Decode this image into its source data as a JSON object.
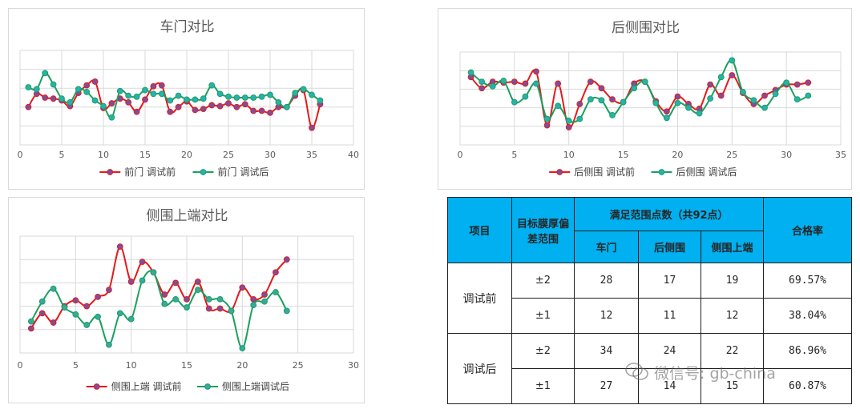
{
  "chart_data": [
    {
      "type": "line",
      "title": "车门对比",
      "xlim": [
        0,
        40
      ],
      "x_ticks": [
        0,
        5,
        10,
        15,
        20,
        25,
        30,
        35,
        40
      ],
      "ylim": [
        0,
        10
      ],
      "grid": true,
      "legend": "bottom",
      "series": [
        {
          "name": "前门 调试前",
          "color": "#e41a1c",
          "marker_color": "#7b4fa0",
          "x": [
            1,
            2,
            3,
            4,
            5,
            6,
            7,
            8,
            9,
            10,
            11,
            12,
            13,
            14,
            15,
            16,
            17,
            18,
            19,
            20,
            21,
            22,
            23,
            24,
            25,
            26,
            27,
            28,
            29,
            30,
            31,
            32,
            33,
            34,
            35,
            36
          ],
          "values": [
            4.0,
            5.4,
            5.0,
            4.9,
            4.7,
            4.1,
            5.5,
            6.3,
            6.7,
            3.9,
            4.4,
            4.9,
            4.5,
            3.5,
            4.8,
            6.2,
            6.3,
            3.5,
            4.0,
            4.6,
            3.7,
            3.8,
            4.2,
            4.1,
            4.4,
            4.0,
            4.3,
            3.6,
            3.6,
            3.4,
            4.0,
            4.0,
            5.2,
            5.8,
            1.8,
            4.3
          ]
        },
        {
          "name": "前门 调试后",
          "color": "#1aa060",
          "marker_color": "#2ab0b0",
          "x": [
            1,
            2,
            3,
            4,
            5,
            6,
            7,
            8,
            9,
            10,
            11,
            12,
            13,
            14,
            15,
            16,
            17,
            18,
            19,
            20,
            21,
            22,
            23,
            24,
            25,
            26,
            27,
            28,
            29,
            30,
            31,
            32,
            33,
            34,
            35,
            36
          ],
          "values": [
            6.1,
            5.9,
            7.6,
            6.4,
            4.9,
            4.5,
            5.9,
            5.6,
            4.7,
            4.1,
            2.9,
            5.7,
            5.2,
            5.1,
            5.8,
            5.4,
            5.4,
            4.7,
            5.2,
            4.8,
            4.8,
            4.9,
            6.3,
            5.4,
            5.1,
            5.0,
            5.0,
            5.0,
            5.1,
            5.3,
            4.5,
            4.0,
            5.5,
            5.9,
            5.3,
            4.7
          ]
        }
      ]
    },
    {
      "type": "line",
      "title": "后侧围对比",
      "xlim": [
        0,
        35
      ],
      "x_ticks": [
        0,
        5,
        10,
        15,
        20,
        25,
        30,
        35
      ],
      "ylim": [
        0,
        10
      ],
      "grid": true,
      "legend": "bottom",
      "series": [
        {
          "name": "后侧围 调试前",
          "color": "#e41a1c",
          "marker_color": "#7b4fa0",
          "x": [
            1,
            2,
            3,
            4,
            5,
            6,
            7,
            8,
            9,
            10,
            11,
            12,
            13,
            14,
            15,
            16,
            17,
            18,
            19,
            20,
            21,
            22,
            23,
            24,
            25,
            26,
            27,
            28,
            29,
            30,
            31,
            32
          ],
          "values": [
            7.3,
            6.1,
            6.8,
            6.7,
            6.8,
            6.6,
            7.9,
            2.1,
            6.6,
            1.9,
            4.4,
            6.8,
            6.1,
            4.9,
            4.6,
            6.6,
            6.8,
            4.7,
            3.6,
            5.2,
            4.4,
            3.9,
            6.5,
            5.3,
            7.5,
            5.6,
            4.4,
            5.3,
            5.9,
            6.5,
            6.5,
            6.7
          ]
        },
        {
          "name": "后侧围 调试后",
          "color": "#1aa060",
          "marker_color": "#2ab0b0",
          "x": [
            1,
            2,
            3,
            4,
            5,
            6,
            7,
            8,
            9,
            10,
            11,
            12,
            13,
            14,
            15,
            16,
            17,
            18,
            19,
            20,
            21,
            22,
            23,
            24,
            25,
            26,
            27,
            28,
            29,
            30,
            31,
            32
          ],
          "values": [
            7.8,
            6.8,
            6.3,
            6.9,
            4.6,
            5.2,
            6.6,
            2.8,
            4.2,
            2.6,
            2.8,
            4.9,
            4.8,
            3.2,
            4.6,
            6.1,
            6.8,
            4.5,
            2.9,
            4.5,
            4.0,
            3.4,
            5.0,
            7.3,
            9.1,
            5.7,
            4.8,
            4.0,
            5.5,
            6.7,
            4.9,
            5.3
          ]
        }
      ]
    },
    {
      "type": "line",
      "title": "侧围上端对比",
      "xlim": [
        0,
        30
      ],
      "x_ticks": [
        0,
        5,
        10,
        15,
        20,
        25,
        30
      ],
      "ylim": [
        0,
        10
      ],
      "grid": true,
      "legend": "bottom",
      "series": [
        {
          "name": "侧围上端 调试前",
          "color": "#e41a1c",
          "marker_color": "#7b4fa0",
          "x": [
            1,
            2,
            3,
            4,
            5,
            6,
            7,
            8,
            9,
            10,
            11,
            12,
            13,
            14,
            15,
            16,
            17,
            18,
            19,
            20,
            21,
            22,
            23,
            24
          ],
          "values": [
            2.1,
            3.4,
            2.6,
            4.0,
            4.5,
            4.0,
            4.8,
            5.4,
            9.1,
            6.1,
            7.8,
            6.9,
            5.0,
            6.0,
            4.6,
            6.1,
            3.8,
            3.8,
            3.6,
            5.6,
            4.6,
            5.0,
            6.9,
            8.0
          ]
        },
        {
          "name": "侧围上端调试后",
          "color": "#1aa060",
          "marker_color": "#3aa8a0",
          "x": [
            1,
            2,
            3,
            4,
            5,
            6,
            7,
            8,
            9,
            10,
            11,
            12,
            13,
            14,
            15,
            16,
            17,
            18,
            19,
            20,
            21,
            22,
            23,
            24
          ],
          "values": [
            2.7,
            4.4,
            5.5,
            3.9,
            3.3,
            2.4,
            3.1,
            0.7,
            3.4,
            2.9,
            6.2,
            6.9,
            4.2,
            4.6,
            3.9,
            5.4,
            4.6,
            4.6,
            3.6,
            0.4,
            4.1,
            4.4,
            5.2,
            3.6
          ]
        }
      ]
    }
  ],
  "table": {
    "headers": {
      "item": "项目",
      "target": "目标膜厚偏差范围",
      "group": "满足范围点数（共92点）",
      "door": "车门",
      "rear": "后侧围",
      "top": "侧围上端",
      "rate": "合格率"
    },
    "rows": [
      {
        "stage": "调试前",
        "range": "±2",
        "door": "28",
        "rear": "17",
        "top": "19",
        "rate": "69.57%"
      },
      {
        "stage": "",
        "range": "±1",
        "door": "12",
        "rear": "11",
        "top": "12",
        "rate": "38.04%"
      },
      {
        "stage": "调试后",
        "range": "±2",
        "door": "34",
        "rear": "24",
        "top": "22",
        "rate": "86.96%"
      },
      {
        "stage": "",
        "range": "±1",
        "door": "27",
        "rear": "14",
        "top": "15",
        "rate": "60.87%"
      }
    ]
  },
  "watermark": {
    "text": "微信号: gb-china",
    "icon": "wechat-icon"
  }
}
